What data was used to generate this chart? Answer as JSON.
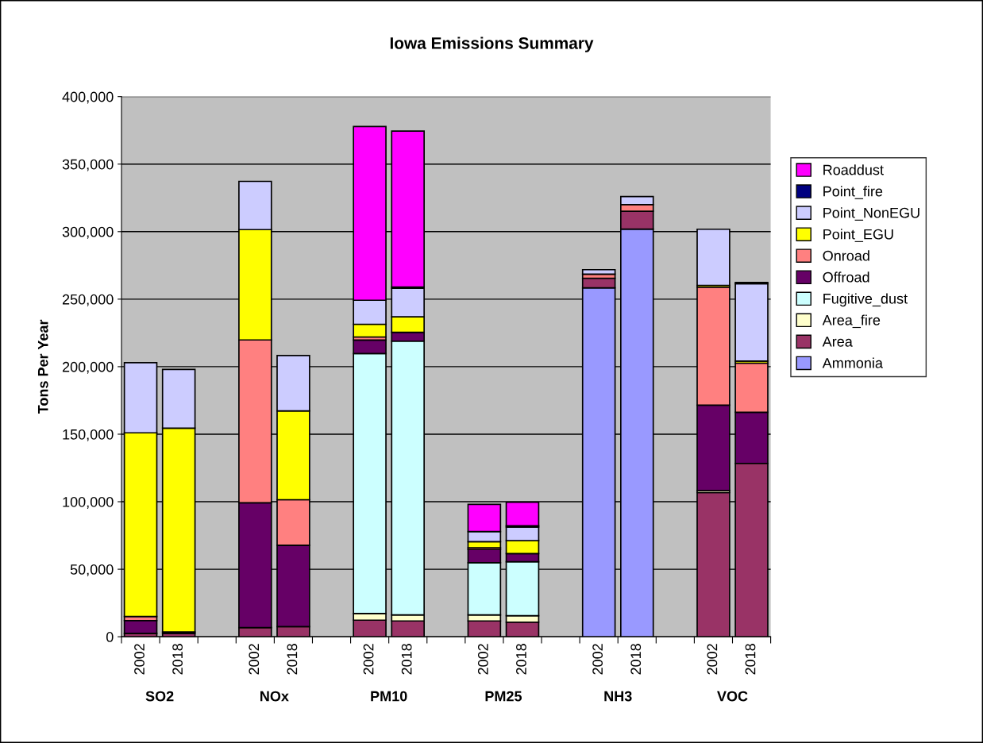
{
  "chart_data": {
    "type": "bar",
    "stacked": true,
    "title": "Iowa Emissions Summary",
    "ylabel": "Tons Per Year",
    "categories": [
      "2002",
      "2018",
      null,
      "2002",
      "2018",
      null,
      "2002",
      "2018",
      null,
      "2002",
      "2018",
      null,
      "2002",
      "2018",
      null,
      "2002",
      "2018"
    ],
    "annotations": [
      "SO2",
      "NOx",
      "PM10",
      "PM25",
      "NH3",
      "VOC"
    ],
    "ylim": [
      0,
      400000
    ],
    "yticks": [
      0,
      {
        "value": 50000,
        "label": "50,000"
      },
      {
        "value": 100000,
        "label": "100,000"
      },
      {
        "value": 150000,
        "label": "150,000"
      },
      {
        "value": 200000,
        "label": "200,000"
      },
      {
        "value": 250000,
        "label": "250,000"
      },
      {
        "value": 300000,
        "label": "300,000"
      },
      {
        "value": 350000,
        "label": "350,000"
      },
      {
        "value": 400000,
        "label": "400,000"
      }
    ],
    "grid": "y",
    "legend": "right",
    "series": [
      {
        "name": "Ammonia",
        "color": "#9999ff",
        "values": [
          0,
          0,
          null,
          0,
          0,
          null,
          0,
          0,
          null,
          0,
          0,
          null,
          258400,
          301900,
          null,
          0,
          0
        ]
      },
      {
        "name": "Area",
        "color": "#993366",
        "values": [
          2500,
          2500,
          null,
          6800,
          7500,
          null,
          12300,
          11700,
          null,
          11700,
          10800,
          null,
          7100,
          13200,
          null,
          106800,
          128400
        ]
      },
      {
        "name": "Area_fire",
        "color": "#ffffcc",
        "values": [
          0,
          0,
          null,
          0,
          0,
          null,
          4900,
          4500,
          null,
          4500,
          4800,
          null,
          0,
          0,
          null,
          1400,
          0
        ]
      },
      {
        "name": "Fugitive_dust",
        "color": "#ccffff",
        "values": [
          0,
          0,
          null,
          0,
          0,
          null,
          192500,
          202700,
          null,
          38600,
          40000,
          null,
          0,
          0,
          null,
          0,
          0
        ]
      },
      {
        "name": "Offroad",
        "color": "#660066",
        "values": [
          9500,
          1000,
          null,
          92400,
          60300,
          null,
          10000,
          6500,
          null,
          9800,
          6000,
          null,
          0,
          0,
          null,
          63300,
          37800
        ]
      },
      {
        "name": "Onroad",
        "color": "#ff8080",
        "values": [
          3000,
          null,
          null,
          120600,
          33700,
          null,
          2300,
          null,
          null,
          1300,
          null,
          null,
          3000,
          4900,
          null,
          87400,
          36400
        ]
      },
      {
        "name": "Point_EGU",
        "color": "#ffff00",
        "values": [
          136000,
          151000,
          null,
          81700,
          65800,
          null,
          9400,
          11500,
          null,
          4500,
          9600,
          null,
          0,
          0,
          null,
          1300,
          1500
        ]
      },
      {
        "name": "Point_NonEGU",
        "color": "#ccccff",
        "values": [
          52000,
          43500,
          null,
          35700,
          41000,
          null,
          17800,
          21100,
          null,
          7500,
          10000,
          null,
          3300,
          6000,
          null,
          41600,
          57400
        ]
      },
      {
        "name": "Point_fire",
        "color": "#000080",
        "values": [
          0,
          0,
          null,
          0,
          0,
          null,
          null,
          1000,
          null,
          0,
          1000,
          null,
          0,
          0,
          null,
          null,
          800
        ]
      },
      {
        "name": "Roaddust",
        "color": "#ff00ff",
        "values": [
          0,
          0,
          null,
          0,
          0,
          null,
          128600,
          115500,
          null,
          20100,
          17400,
          null,
          0,
          0,
          null,
          0,
          0
        ]
      }
    ]
  }
}
